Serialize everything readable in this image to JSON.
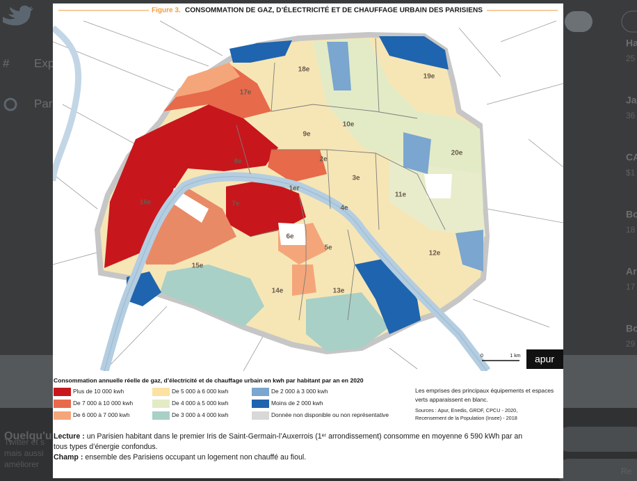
{
  "background_ui": {
    "nav": [
      "Exp",
      "Par"
    ],
    "side": [
      {
        "title": "Ha",
        "sub": "25"
      },
      {
        "title": "Ja",
        "sub": "36"
      },
      {
        "title": "CA",
        "sub": "$1"
      },
      {
        "title": "Bo",
        "sub": "18"
      },
      {
        "title": "Ar",
        "sub": "17"
      },
      {
        "title": "Bo",
        "sub": "29"
      }
    ],
    "footer": [
      "Quelqu'u",
      "Twitter et s",
      "mais aussi",
      "améliorer"
    ],
    "footer_button": "Re"
  },
  "figure": {
    "title_prefix": "Figure 3.",
    "title": "CONSOMMATION DE GAZ, D’ÉLECTRICITÉ ET DE CHAUFFAGE URBAIN DES PARISIENS",
    "arrondissements": [
      "18e",
      "19e",
      "17e",
      "9e",
      "10e",
      "20e",
      "8e",
      "2e",
      "3e",
      "1er",
      "11e",
      "7e",
      "4e",
      "16e",
      "6e",
      "5e",
      "12e",
      "15e",
      "14e",
      "13e"
    ],
    "scale": {
      "start": "0",
      "end": "1 km"
    },
    "logo": "apur",
    "legend": {
      "title": "Consommation annuelle réelle de gaz, d’électricité et de chauffage urbain en kwh par habitant par an en 2020",
      "items": [
        {
          "label": "Plus de 10 000  kwh",
          "color": "#c8161d"
        },
        {
          "label": "De 7 000 à 10 000 kwh",
          "color": "#e76a4b"
        },
        {
          "label": "De 6 000 à 7 000 kwh",
          "color": "#f4a67a"
        },
        {
          "label": "De 5 000 à 6 000 kwh",
          "color": "#fbe2a2"
        },
        {
          "label": "De 4 000 à 5 000 kwh",
          "color": "#e3ebc6"
        },
        {
          "label": "De 3 000 à 4 000 kwh",
          "color": "#a8d0c6"
        },
        {
          "label": "De 2 000 à 3 000 kwh",
          "color": "#7aa6cf"
        },
        {
          "label": "Moins de 2 000 kwh",
          "color": "#1f64ae"
        },
        {
          "label": "Donnée non disponible ou non représentative",
          "color": "#d8d8d8"
        }
      ]
    },
    "note": [
      "Les emprises des principaux équipements et espaces",
      "verts apparaissent en blanc."
    ],
    "sources": [
      "Sources : Apur, Enedis, GRDF, CPCU - 2020,",
      "Recensement de la Population (Insee) - 2018"
    ],
    "lecture": {
      "label": "Lecture :",
      "text": "un Parisien habitant dans le premier Iris de Saint-Germain-l’Auxerrois (1ᵉʳ arrondissement) consomme en moyenne 6 590 kWh par an",
      "text_cont": "tous types d’énergie confondus."
    },
    "champ": {
      "label": "Champ :",
      "text": "ensemble des Parisiens occupant un logement non chauffé au fioul."
    }
  }
}
